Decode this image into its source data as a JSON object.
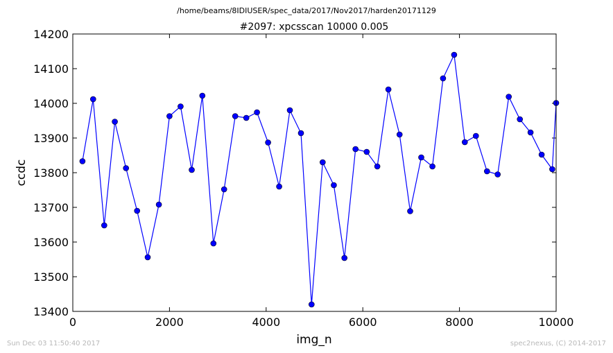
{
  "suptitle": "/home/beams/8IDIUSER/spec_data/2017/Nov2017/harden20171129",
  "footer": {
    "left": "Sun Dec 03 11:50:40 2017",
    "right": "spec2nexus, (C) 2014-2017"
  },
  "colors": {
    "series": "#0000ff",
    "marker": "#0000ff",
    "marker_edge": "#000000"
  },
  "chart_data": {
    "type": "line",
    "title": "#2097: xpcsscan 10000 0.005",
    "xlabel": "img_n",
    "ylabel": "ccdc",
    "xlim": [
      0,
      10000
    ],
    "ylim": [
      13400,
      14200
    ],
    "xticks": [
      0,
      2000,
      4000,
      6000,
      8000,
      10000
    ],
    "yticks": [
      13400,
      13500,
      13600,
      13700,
      13800,
      13900,
      14000,
      14100,
      14200
    ],
    "grid": false,
    "marker": "circle",
    "x": [
      200,
      420,
      650,
      870,
      1100,
      1330,
      1550,
      1780,
      2000,
      2230,
      2460,
      2680,
      2910,
      3130,
      3360,
      3590,
      3810,
      4040,
      4270,
      4490,
      4720,
      4940,
      5170,
      5400,
      5620,
      5850,
      6080,
      6300,
      6530,
      6760,
      6980,
      7210,
      7440,
      7660,
      7890,
      8110,
      8340,
      8570,
      8790,
      9020,
      9250,
      9470,
      9700,
      9920,
      10000
    ],
    "y": [
      13833,
      14012,
      13648,
      13947,
      13813,
      13690,
      13556,
      13708,
      13963,
      13991,
      13808,
      14022,
      13596,
      13752,
      13963,
      13958,
      13974,
      13887,
      13760,
      13980,
      13914,
      13420,
      13830,
      13764,
      13554,
      13868,
      13860,
      13818,
      14040,
      13910,
      13689,
      13844,
      13818,
      14072,
      14140,
      13888,
      13906,
      13804,
      13795,
      14019,
      13954,
      13916,
      13852,
      13810,
      14001
    ]
  }
}
